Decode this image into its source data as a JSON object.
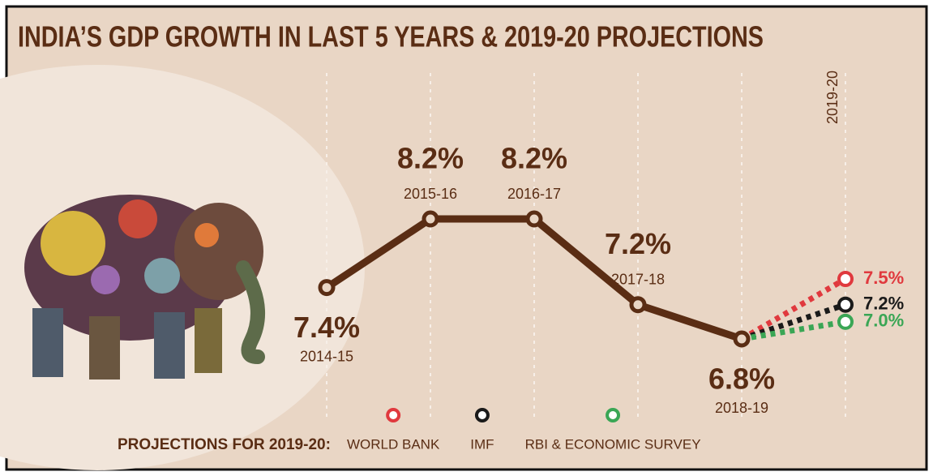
{
  "chart_data": {
    "type": "line",
    "title": "INDIA’S GDP GROWTH IN LAST 5 YEARS & 2019-20 PROJECTIONS",
    "categories": [
      "2014-15",
      "2015-16",
      "2016-17",
      "2017-18",
      "2018-19",
      "2019-20"
    ],
    "series": [
      {
        "color": "#5a2d14",
        "values": [
          7.4,
          8.2,
          8.2,
          7.2,
          6.8,
          null
        ],
        "value_labels": [
          "7.4%",
          "8.2%",
          "8.2%",
          "7.2%",
          "6.8%",
          null
        ]
      },
      {
        "name": "WORLD BANK",
        "color": "#e0393e",
        "values": [
          null,
          null,
          null,
          null,
          null,
          7.5
        ],
        "value_labels": [
          null,
          null,
          null,
          null,
          null,
          "7.5%"
        ]
      },
      {
        "name": "IMF",
        "color": "#1a1a1a",
        "values": [
          null,
          null,
          null,
          null,
          null,
          7.2
        ],
        "value_labels": [
          null,
          null,
          null,
          null,
          null,
          "7.2%"
        ]
      },
      {
        "name": "RBI & ECONOMIC SURVEY",
        "color": "#3aa655",
        "values": [
          null,
          null,
          null,
          null,
          null,
          7.0
        ],
        "value_labels": [
          null,
          null,
          null,
          null,
          null,
          "7.0%"
        ]
      }
    ],
    "legend_title": "PROJECTIONS FOR 2019-20:"
  }
}
